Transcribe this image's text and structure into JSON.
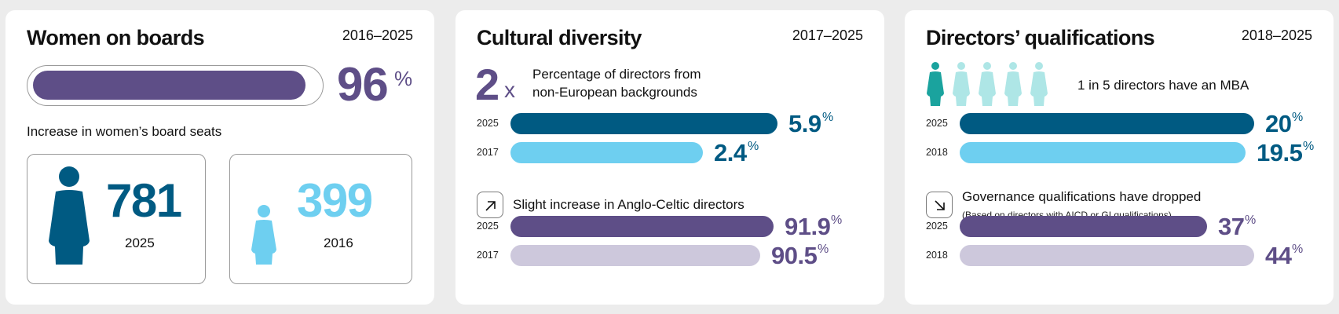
{
  "colors": {
    "purple": "#5e4e87",
    "purple_light": "#cdc8dc",
    "navy": "#005a82",
    "sky": "#6ecff0",
    "teal": "#1aa39e",
    "teal_light": "#aee6e6"
  },
  "women_on_boards": {
    "title": "Women on boards",
    "years": "2016–2025",
    "headline_value": "96",
    "headline_unit": "%",
    "headline_fraction": 0.96,
    "increase_label": "Increase in women’s board seats",
    "stats": [
      {
        "value": "781",
        "year": "2025",
        "icon": "woman-icon"
      },
      {
        "value": "399",
        "year": "2016",
        "icon": "woman-icon-small"
      }
    ]
  },
  "cultural_diversity": {
    "title": "Cultural diversity",
    "years": "2017–2025",
    "multiplier_number": "2",
    "multiplier_symbol": "x",
    "multiplier_desc_line1": "Percentage of directors from",
    "multiplier_desc_line2": "non-European backgrounds",
    "trend_text": "Slight increase in Anglo-Celtic directors",
    "trend_icon": "arrow-up-right-icon"
  },
  "directors_qualifications": {
    "title": "Directors’ qualifications",
    "years": "2018–2025",
    "mba_text": "1 in 5 directors have an MBA",
    "trend_text": "Governance qualifications have dropped",
    "trend_subtext": "(Based on directors with AICD or GI qualifications)",
    "trend_icon": "arrow-down-right-icon"
  },
  "chart_data": [
    {
      "type": "bar",
      "orientation": "horizontal",
      "title": "Women on boards",
      "categories": [
        "2016",
        "2025"
      ],
      "values": [
        399,
        781
      ],
      "increase_percent": 96
    },
    {
      "type": "bar",
      "orientation": "horizontal",
      "title": "Percentage of directors from non-European backgrounds",
      "categories": [
        "2025",
        "2017"
      ],
      "values": [
        5.9,
        2.4
      ],
      "labels": [
        "5.9",
        "2.4"
      ],
      "unit": "%"
    },
    {
      "type": "bar",
      "orientation": "horizontal",
      "title": "Slight increase in Anglo-Celtic directors",
      "categories": [
        "2025",
        "2017"
      ],
      "values": [
        91.9,
        90.5
      ],
      "labels": [
        "91.9",
        "90.5"
      ],
      "unit": "%"
    },
    {
      "type": "bar",
      "orientation": "horizontal",
      "title": "1 in 5 directors have an MBA",
      "categories": [
        "2025",
        "2018"
      ],
      "values": [
        20,
        19.5
      ],
      "labels": [
        "20",
        "19.5"
      ],
      "unit": "%"
    },
    {
      "type": "bar",
      "orientation": "horizontal",
      "title": "Governance qualifications have dropped",
      "categories": [
        "2025",
        "2018"
      ],
      "values": [
        37,
        44
      ],
      "labels": [
        "37",
        "44"
      ],
      "unit": "%"
    }
  ]
}
